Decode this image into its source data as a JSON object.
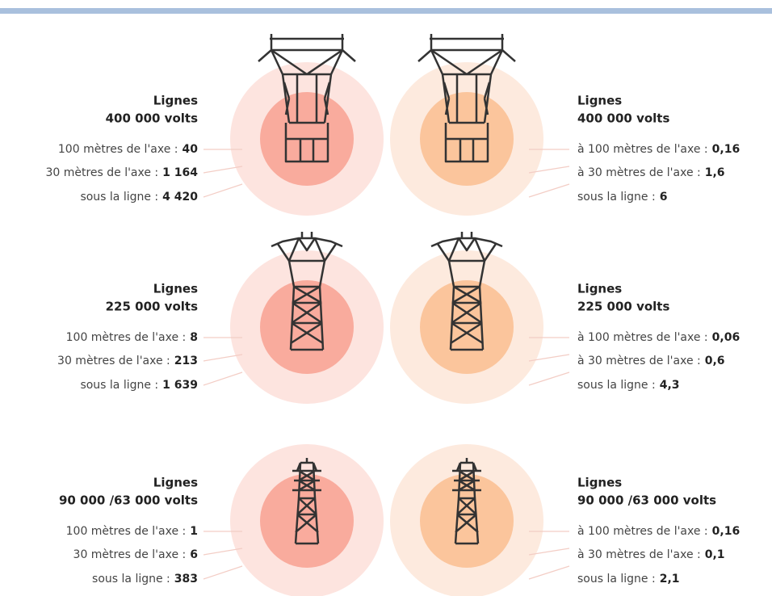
{
  "panels": [
    {
      "rows": [
        {
          "title": "Lignes",
          "voltage": "400 000 volts",
          "items": [
            {
              "label": "100 mètres de l'axe :",
              "value": "40"
            },
            {
              "label": "30 mètres de l'axe :",
              "value": "1 164"
            },
            {
              "label": "sous la ligne :",
              "value": "4 420"
            }
          ]
        },
        {
          "title": "Lignes",
          "voltage": "225 000 volts",
          "items": [
            {
              "label": "100 mètres de l'axe :",
              "value": "8"
            },
            {
              "label": "30 mètres de l'axe :",
              "value": "213"
            },
            {
              "label": "sous la ligne :",
              "value": "1 639"
            }
          ]
        },
        {
          "title": "Lignes",
          "voltage": "90 000 /63 000 volts",
          "items": [
            {
              "label": "100 mètres de l'axe :",
              "value": "1"
            },
            {
              "label": "30 mètres de l'axe :",
              "value": "6"
            },
            {
              "label": "sous la ligne :",
              "value": "383"
            }
          ]
        }
      ]
    },
    {
      "rows": [
        {
          "title": "Lignes",
          "voltage": "400 000 volts",
          "items": [
            {
              "label": "à 100 mètres de l'axe :",
              "value": "0,16"
            },
            {
              "label": "à 30 mètres de l'axe :",
              "value": "1,6"
            },
            {
              "label": "sous la ligne :",
              "value": "6"
            }
          ]
        },
        {
          "title": "Lignes",
          "voltage": "225 000 volts",
          "items": [
            {
              "label": "à 100 mètres de l'axe :",
              "value": "0,06"
            },
            {
              "label": "à 30 mètres de l'axe :",
              "value": "0,6"
            },
            {
              "label": "sous la ligne :",
              "value": "4,3"
            }
          ]
        },
        {
          "title": "Lignes",
          "voltage": "90 000 /63 000 volts",
          "items": [
            {
              "label": "à 100 mètres de l'axe :",
              "value": "0,16"
            },
            {
              "label": "à 30 mètres de l'axe :",
              "value": "0,1"
            },
            {
              "label": "sous la ligne :",
              "value": "2,1"
            }
          ]
        }
      ]
    }
  ]
}
